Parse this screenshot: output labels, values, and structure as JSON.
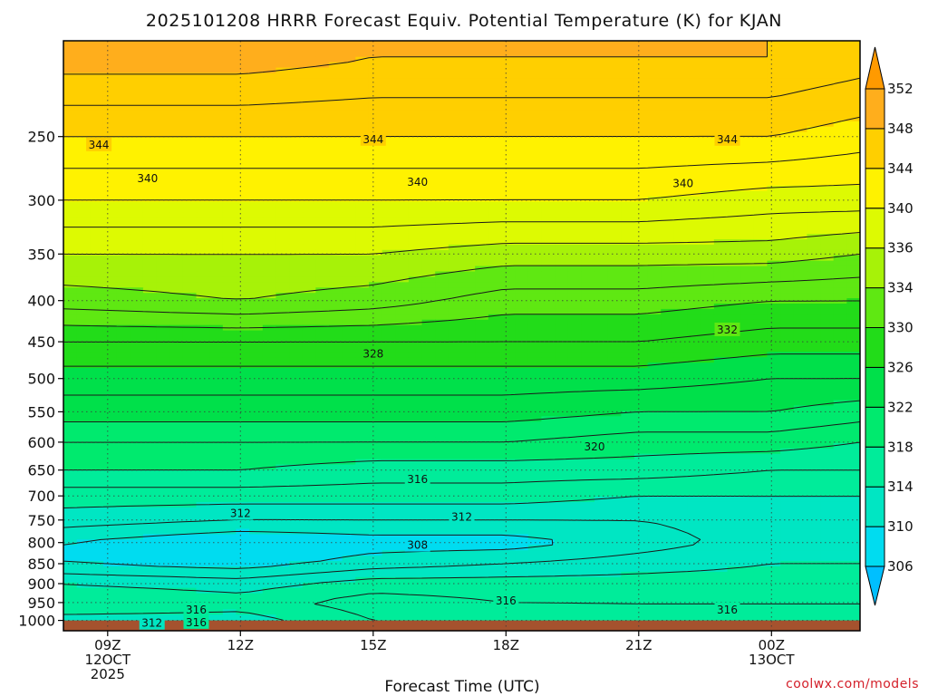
{
  "chart_data": {
    "type": "heatmap",
    "title": "2025101208 HRRR Forecast Equiv. Potential Temperature (K) for KJAN",
    "xlabel": "Forecast Time (UTC)",
    "ylabel": "",
    "credit": "coolwx.com/models",
    "x_range_hours": [
      8,
      26
    ],
    "x_ticks": [
      {
        "hour": 9,
        "lines": [
          "09Z",
          "12OCT",
          "2025"
        ]
      },
      {
        "hour": 12,
        "lines": [
          "12Z"
        ]
      },
      {
        "hour": 15,
        "lines": [
          "15Z"
        ]
      },
      {
        "hour": 18,
        "lines": [
          "18Z"
        ]
      },
      {
        "hour": 21,
        "lines": [
          "21Z"
        ]
      },
      {
        "hour": 24,
        "lines": [
          "00Z",
          "13OCT"
        ]
      }
    ],
    "y_axis": {
      "scale": "log-pressure",
      "units": "hPa",
      "range": [
        1030,
        190
      ],
      "ticks": [
        250,
        300,
        350,
        400,
        450,
        500,
        550,
        600,
        650,
        700,
        750,
        800,
        850,
        900,
        950,
        1000
      ]
    },
    "colorbar": {
      "levels": [
        306,
        310,
        314,
        318,
        322,
        326,
        330,
        334,
        336,
        340,
        344,
        348,
        352
      ],
      "colors": [
        "#00bfff",
        "#00dcf0",
        "#00e6c3",
        "#00ec9a",
        "#00ea6e",
        "#00e04a",
        "#22dc19",
        "#5fe812",
        "#a7f208",
        "#ddfa02",
        "#fff200",
        "#ffcf00",
        "#ffae1c",
        "#ff9a00"
      ]
    },
    "ground": {
      "color": "#a5522e",
      "pressure_top": 1000
    },
    "profiles": [
      {
        "hour": 8,
        "p": [
          1000,
          950,
          900,
          850,
          800,
          750,
          700,
          650,
          600,
          550,
          500,
          450,
          400,
          350,
          300,
          250,
          200
        ],
        "theta_e": [
          313,
          316,
          314,
          310,
          310,
          313,
          315,
          318,
          320,
          323,
          325,
          328,
          333,
          336,
          340,
          344,
          349
        ]
      },
      {
        "hour": 12,
        "p": [
          1000,
          950,
          900,
          850,
          800,
          750,
          700,
          650,
          600,
          550,
          500,
          450,
          400,
          350,
          300,
          250,
          200
        ],
        "theta_e": [
          313,
          315,
          313,
          309,
          308,
          312,
          315,
          318,
          320,
          323,
          325,
          328,
          334,
          336,
          340,
          344,
          349
        ]
      },
      {
        "hour": 15,
        "p": [
          1000,
          950,
          900,
          850,
          800,
          750,
          700,
          650,
          600,
          550,
          500,
          450,
          400,
          350,
          300,
          250,
          200
        ],
        "theta_e": [
          316,
          317,
          315,
          311,
          309,
          312,
          315,
          317,
          320,
          323,
          325,
          328,
          333,
          336,
          340,
          344,
          348
        ]
      },
      {
        "hour": 18,
        "p": [
          1000,
          950,
          900,
          850,
          800,
          750,
          700,
          650,
          600,
          550,
          500,
          450,
          400,
          350,
          300,
          250,
          200
        ],
        "theta_e": [
          317,
          316,
          315,
          312,
          309,
          312,
          315,
          317,
          320,
          323,
          325,
          328,
          331,
          335,
          340,
          344,
          348
        ]
      },
      {
        "hour": 21,
        "p": [
          1000,
          950,
          900,
          850,
          800,
          750,
          700,
          650,
          600,
          550,
          500,
          450,
          400,
          350,
          300,
          250,
          200
        ],
        "theta_e": [
          316,
          316,
          315,
          313,
          311,
          312,
          314,
          317,
          319,
          322,
          325,
          328,
          331,
          335,
          340,
          344,
          348
        ]
      },
      {
        "hour": 24,
        "p": [
          1000,
          950,
          900,
          850,
          800,
          750,
          700,
          650,
          600,
          550,
          500,
          450,
          400,
          350,
          300,
          250,
          200
        ],
        "theta_e": [
          316,
          316,
          315,
          314,
          313,
          313,
          314,
          316,
          319,
          322,
          324,
          327,
          330,
          335,
          339,
          344,
          348
        ]
      },
      {
        "hour": 26,
        "p": [
          1000,
          950,
          900,
          850,
          800,
          750,
          700,
          650,
          600,
          550,
          500,
          450,
          400,
          350,
          300,
          250,
          200
        ],
        "theta_e": [
          316,
          316,
          315,
          314,
          313,
          313,
          314,
          316,
          318,
          321,
          324,
          327,
          330,
          334,
          339,
          343,
          347
        ]
      }
    ],
    "contour_labels": [
      {
        "value": "344",
        "hour": 8.8,
        "p": 256
      },
      {
        "value": "344",
        "hour": 15.0,
        "p": 252
      },
      {
        "value": "344",
        "hour": 23.0,
        "p": 252
      },
      {
        "value": "340",
        "hour": 9.9,
        "p": 282
      },
      {
        "value": "340",
        "hour": 16.0,
        "p": 285
      },
      {
        "value": "340",
        "hour": 22.0,
        "p": 286
      },
      {
        "value": "332",
        "hour": 23.0,
        "p": 435
      },
      {
        "value": "328",
        "hour": 15.0,
        "p": 466
      },
      {
        "value": "320",
        "hour": 20.0,
        "p": 608
      },
      {
        "value": "316",
        "hour": 16.0,
        "p": 668
      },
      {
        "value": "312",
        "hour": 12.0,
        "p": 736
      },
      {
        "value": "312",
        "hour": 17.0,
        "p": 744
      },
      {
        "value": "308",
        "hour": 16.0,
        "p": 806
      },
      {
        "value": "316",
        "hour": 18.0,
        "p": 946
      },
      {
        "value": "316",
        "hour": 23.0,
        "p": 970
      },
      {
        "value": "316",
        "hour": 11.0,
        "p": 970
      },
      {
        "value": "312",
        "hour": 10.0,
        "p": 1008
      },
      {
        "value": "316",
        "hour": 11.0,
        "p": 1006
      }
    ],
    "grid": true,
    "legend": "right"
  }
}
